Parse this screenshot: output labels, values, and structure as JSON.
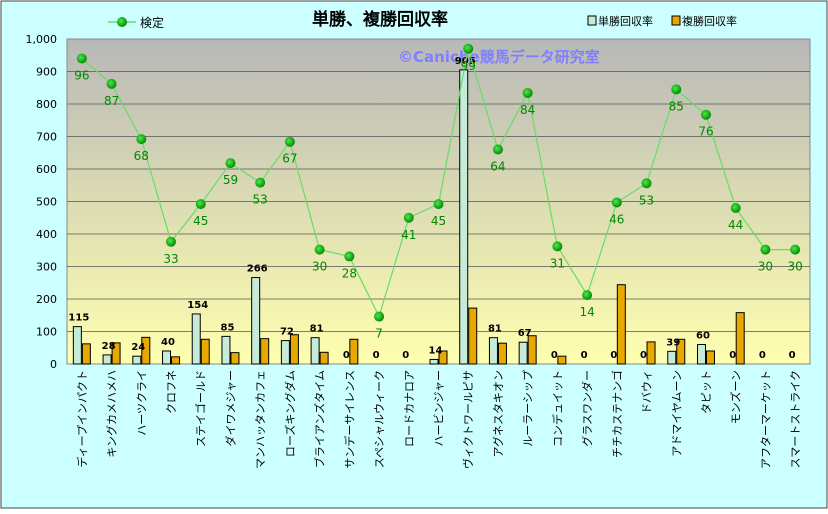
{
  "chart_data": {
    "type": "bar",
    "title": "単勝、複勝回収率",
    "watermark": "©Caniche競馬データ研究室",
    "categories": [
      "ディープインパクト",
      "キングカメハメハ",
      "ハーツクライ",
      "クロフネ",
      "ステイゴールド",
      "ダイワメジャー",
      "マンハッタンカフェ",
      "ローズキングダム",
      "ブライアンズタイム",
      "サンデーサイレンス",
      "スペシャルウィーク",
      "ロードカナロア",
      "ハービンジャー",
      "ヴィクトワールピサ",
      "アグネスタキオン",
      "ルーラーシップ",
      "コンデュイット",
      "グラスワンダー",
      "チチカステナンゴ",
      "ドバウィ",
      "アドマイヤムーン",
      "タピット",
      "モンズーン",
      "アフターマーケット",
      "スマートストライク"
    ],
    "ylim": [
      0,
      1000
    ],
    "yticks": [
      "0",
      "100",
      "200",
      "300",
      "400",
      "500",
      "600",
      "700",
      "800",
      "900",
      "1,000"
    ],
    "series": [
      {
        "name": "単勝回収率",
        "color": "#c6ecd9",
        "values": [
          115,
          28,
          24,
          40,
          154,
          85,
          266,
          72,
          81,
          0,
          0,
          0,
          14,
          905,
          81,
          67,
          0,
          0,
          0,
          0,
          39,
          60,
          0,
          0,
          0
        ],
        "labels": [
          "115",
          "28",
          "24",
          "40",
          "154",
          "85",
          "266",
          "72",
          "81",
          "0",
          "0",
          "0",
          "14",
          "905",
          "81",
          "67",
          "0",
          "0",
          "0",
          "0",
          "39",
          "60",
          "0",
          "0",
          "0"
        ]
      },
      {
        "name": "複勝回収率",
        "color": "#e8a800",
        "values": [
          62,
          65,
          82,
          22,
          76,
          35,
          78,
          90,
          36,
          76,
          0,
          0,
          40,
          172,
          64,
          87,
          24,
          0,
          244,
          68,
          76,
          40,
          158,
          0,
          0
        ]
      },
      {
        "name": "検定",
        "color": "#009900",
        "values": [
          940,
          862,
          692,
          376,
          492,
          618,
          558,
          684,
          352,
          331,
          146,
          450,
          492,
          970,
          660,
          834,
          362,
          212,
          497,
          556,
          845,
          767,
          480,
          352,
          352
        ],
        "labels": [
          "96",
          "87",
          "68",
          "33",
          "45",
          "59",
          "53",
          "67",
          "30",
          "28",
          "7",
          "41",
          "45",
          "99",
          "64",
          "84",
          "31",
          "14",
          "46",
          "53",
          "85",
          "76",
          "44",
          "30",
          "30"
        ]
      }
    ],
    "colors": {
      "background_gradient_top": "#b8b8b8",
      "background_gradient_bottom": "#ffffb0",
      "frame": "#ccffff",
      "line": "#66dd66",
      "marker": "#009900",
      "line_label": "#008800"
    }
  }
}
